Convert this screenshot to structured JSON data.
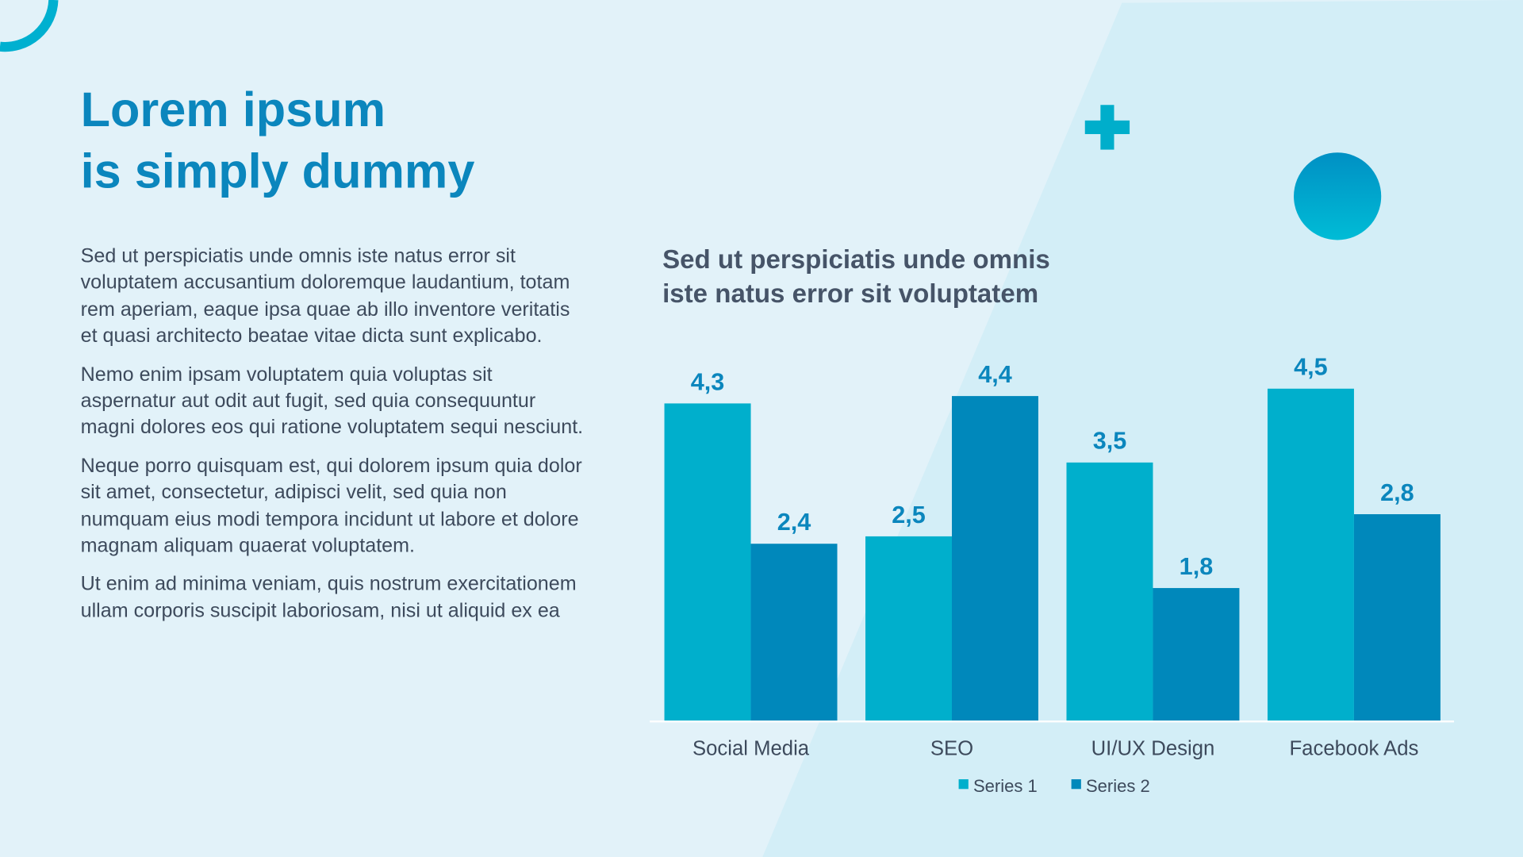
{
  "title": {
    "line1": "Lorem ipsum",
    "line2": "is simply dummy"
  },
  "paragraphs": [
    "Sed ut perspiciatis unde omnis iste natus error sit voluptatem accusantium doloremque laudantium, totam rem aperiam, eaque ipsa quae ab illo inventore veritatis et quasi architecto beatae vitae dicta sunt explicabo.",
    "Nemo enim ipsam voluptatem quia voluptas sit aspernatur aut odit aut fugit, sed quia consequuntur magni dolores eos qui ratione voluptatem sequi nesciunt.",
    "Neque porro quisquam est, qui dolorem ipsum quia dolor sit amet, consectetur, adipisci velit, sed quia non numquam eius modi tempora incidunt ut labore et dolore magnam aliquam quaerat voluptatem.",
    "Ut enim ad minima veniam, quis nostrum exercitationem ullam corporis suscipit laboriosam, nisi ut aliquid ex ea"
  ],
  "colors": {
    "series1": "#00afcc",
    "series2": "#0088bb",
    "label": "#0b86bd",
    "accent": "#00b0d0"
  },
  "chart_data": {
    "type": "bar",
    "title": "Sed ut perspiciatis unde omnis iste natus error sit voluptatem",
    "title_line1": "Sed ut perspiciatis unde omnis",
    "title_line2": "iste natus error sit voluptatem",
    "categories": [
      "Social Media",
      "SEO",
      "UI/UX Design",
      "Facebook Ads"
    ],
    "series": [
      {
        "name": "Series 1",
        "values": [
          4.3,
          2.5,
          3.5,
          4.5
        ],
        "labels": [
          "4,3",
          "2,5",
          "3,5",
          "4,5"
        ]
      },
      {
        "name": "Series 2",
        "values": [
          2.4,
          4.4,
          1.8,
          2.8
        ],
        "labels": [
          "2,4",
          "4,4",
          "1,8",
          "2,8"
        ]
      }
    ],
    "xlabel": "",
    "ylabel": "",
    "ylim": [
      0,
      4.5
    ],
    "grid": false,
    "legend": "bottom"
  }
}
